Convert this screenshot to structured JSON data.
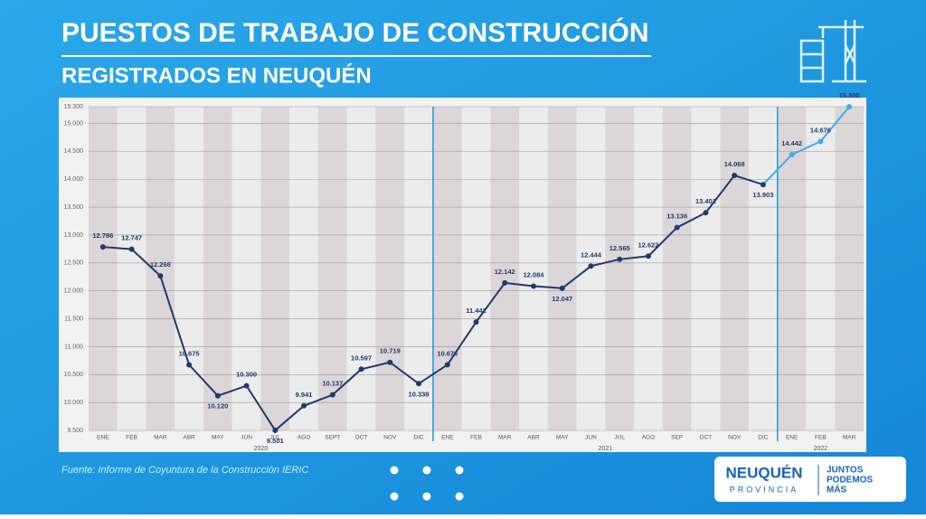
{
  "chart_data": {
    "type": "line",
    "title": "PUESTOS DE TRABAJO DE CONSTRUCCIÓN",
    "subtitle": "REGISTRADOS EN NEUQUÉN",
    "source": "Fuente: Informe de Coyuntura de la Construcción IERIC",
    "categories": [
      "ENE",
      "FEB",
      "MAR",
      "ABR",
      "MAY",
      "JUN",
      "JUL",
      "AGO",
      "SEPT",
      "OCT",
      "NOV",
      "DIC",
      "ENE",
      "FEB",
      "MAR",
      "ABR",
      "MAY",
      "JUN",
      "JUL",
      "AGO",
      "SEP",
      "OCT",
      "NOV",
      "DIC",
      "ENE",
      "FEB",
      "MAR"
    ],
    "x_groups": [
      {
        "label": "2020",
        "size": 12
      },
      {
        "label": "2021",
        "size": 12
      },
      {
        "label": "2022",
        "size": 3
      }
    ],
    "series": [
      {
        "values": [
          12786,
          12747,
          12268,
          10675,
          10120,
          10300,
          9501,
          9941,
          10137,
          10597,
          10719,
          10338,
          10676,
          11442,
          12142,
          12084,
          12047,
          12444,
          12565,
          12622,
          13136,
          13401,
          14068,
          13903,
          14442,
          14676,
          15300
        ],
        "value_labels": [
          "12.786",
          "12.747",
          "12.268",
          "10.675",
          "10.120",
          "10.300",
          "9.501",
          "9.941",
          "10.137",
          "10.597",
          "10.719",
          "10.338",
          "10.676",
          "11.442",
          "12.142",
          "12.084",
          "12.047",
          "12.444",
          "12.565",
          "12.622",
          "13.136",
          "13.401",
          "14.068",
          "13.903",
          "14.442",
          "14.676",
          "15.300"
        ],
        "colors": [
          "#1e3a6e",
          "#1e3a6e",
          "#1e3a6e",
          "#1e3a6e",
          "#1e3a6e",
          "#1e3a6e",
          "#1e3a6e",
          "#1e3a6e",
          "#1e3a6e",
          "#1e3a6e",
          "#1e3a6e",
          "#1e3a6e",
          "#1e3a6e",
          "#1e3a6e",
          "#1e3a6e",
          "#1e3a6e",
          "#1e3a6e",
          "#1e3a6e",
          "#1e3a6e",
          "#1e3a6e",
          "#1e3a6e",
          "#1e3a6e",
          "#1e3a6e",
          "#1e3a6e",
          "#3eaee8",
          "#3eaee8",
          "#3eaee8"
        ]
      }
    ],
    "ylim": [
      9500,
      15300
    ],
    "yticks": [
      {
        "value": 9500,
        "label": "9.500"
      },
      {
        "value": 10000,
        "label": "10.000"
      },
      {
        "value": 10500,
        "label": "10.500"
      },
      {
        "value": 11000,
        "label": "11.000"
      },
      {
        "value": 11500,
        "label": "11.500"
      },
      {
        "value": 12000,
        "label": "12.000"
      },
      {
        "value": 12500,
        "label": "12.500"
      },
      {
        "value": 13000,
        "label": "13.000"
      },
      {
        "value": 13500,
        "label": "13.500"
      },
      {
        "value": 14000,
        "label": "14.000"
      },
      {
        "value": 14500,
        "label": "14.500"
      },
      {
        "value": 15000,
        "label": "15.000"
      },
      {
        "value": 15300,
        "label": "15.300"
      }
    ],
    "grid": true
  },
  "logo": {
    "name": "NEUQUÉN",
    "sub": "PROVINCIA",
    "slogan": [
      "JUNTOS",
      "PODEMOS",
      "MÁS"
    ]
  }
}
